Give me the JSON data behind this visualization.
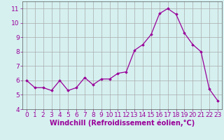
{
  "x": [
    0,
    1,
    2,
    3,
    4,
    5,
    6,
    7,
    8,
    9,
    10,
    11,
    12,
    13,
    14,
    15,
    16,
    17,
    18,
    19,
    20,
    21,
    22,
    23
  ],
  "y": [
    6.0,
    5.5,
    5.5,
    5.3,
    6.0,
    5.3,
    5.5,
    6.2,
    5.7,
    6.1,
    6.1,
    6.5,
    6.6,
    8.1,
    8.5,
    9.2,
    10.65,
    11.0,
    10.6,
    9.3,
    8.5,
    8.0,
    5.4,
    4.6
  ],
  "line_color": "#990099",
  "marker": "D",
  "marker_size": 1.8,
  "bg_color": "#d6f0f0",
  "grid_color": "#aaaaaa",
  "xlabel": "Windchill (Refroidissement éolien,°C)",
  "xlim": [
    -0.5,
    23.5
  ],
  "ylim": [
    4,
    11.5
  ],
  "yticks": [
    4,
    5,
    6,
    7,
    8,
    9,
    10,
    11
  ],
  "xticks": [
    0,
    1,
    2,
    3,
    4,
    5,
    6,
    7,
    8,
    9,
    10,
    11,
    12,
    13,
    14,
    15,
    16,
    17,
    18,
    19,
    20,
    21,
    22,
    23
  ],
  "xlabel_fontsize": 7,
  "tick_fontsize": 6.5,
  "label_color": "#990099",
  "spine_color": "#555555"
}
